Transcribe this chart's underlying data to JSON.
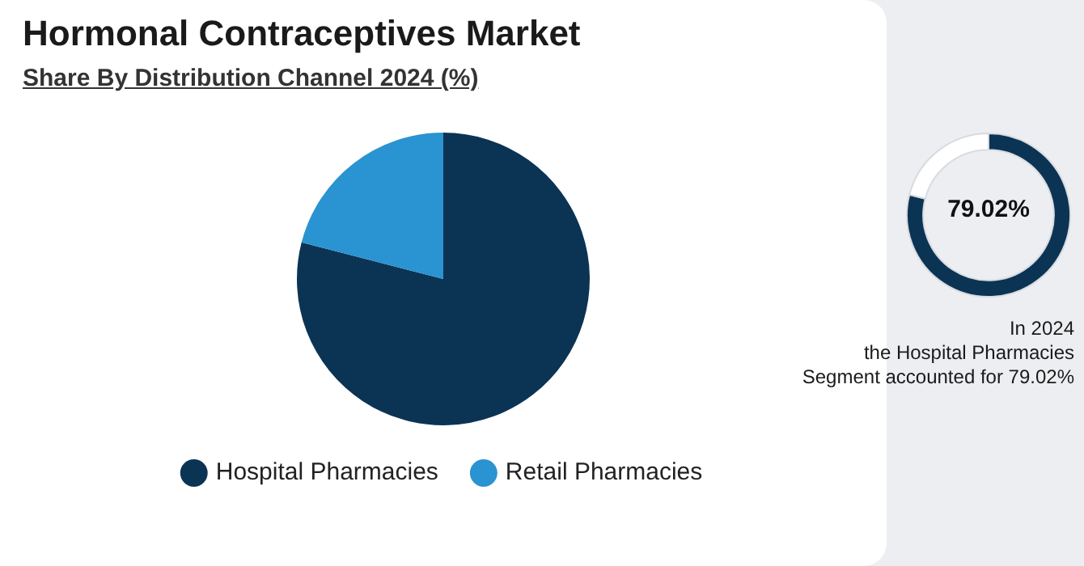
{
  "chart_data": [
    {
      "type": "pie",
      "title": "Hormonal Contraceptives Market",
      "subtitle": "Share By Distribution Channel 2024 (%)",
      "categories": [
        "Hospital Pharmacies",
        "Retail Pharmacies"
      ],
      "values": [
        79.02,
        20.98
      ],
      "colors": [
        "#0b3354",
        "#2a93d1"
      ],
      "legend": "bottom"
    },
    {
      "type": "donut",
      "categories": [
        null,
        null
      ],
      "values": [
        79.02,
        20.98
      ],
      "colors": [
        "#0b3354",
        "#ffffff"
      ],
      "annotations": [
        "79.02%",
        "In 2024\nthe Hospital Pharmacies\nSegment accounted for 79.02%"
      ]
    }
  ]
}
